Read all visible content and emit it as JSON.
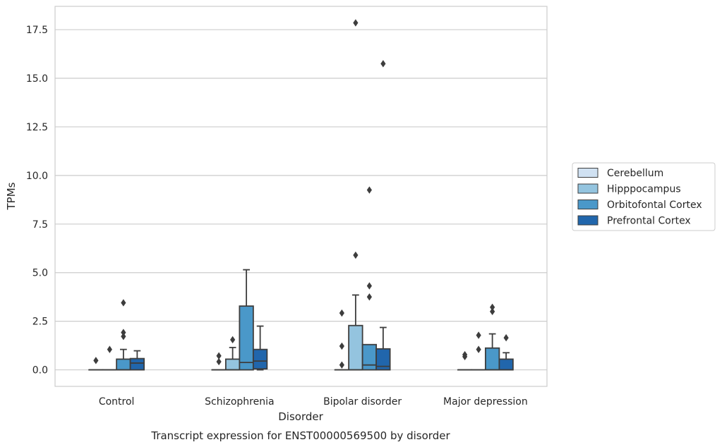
{
  "chart_data": {
    "type": "box",
    "caption": "Transcript expression for ENST00000569500 by disorder",
    "xlabel": "Disorder",
    "ylabel": "TPMs",
    "ylim": [
      -0.85,
      18.7
    ],
    "yticks": [
      "0.0",
      "2.5",
      "5.0",
      "7.5",
      "10.0",
      "12.5",
      "15.0",
      "17.5"
    ],
    "ytick_values": [
      0,
      2.5,
      5,
      7.5,
      10,
      12.5,
      15,
      17.5
    ],
    "grid": "horizontal",
    "legend_position": "right",
    "categories": [
      "Control",
      "Schizophrenia",
      "Bipolar disorder",
      "Major depression"
    ],
    "series": [
      {
        "name": "Cerebellum",
        "color": "#d0e1f2",
        "boxes": [
          {
            "q1": 0,
            "median": 0,
            "q3": 0,
            "wlo": 0,
            "whi": 0,
            "outliers": [
              0.48
            ]
          },
          {
            "q1": 0,
            "median": 0,
            "q3": 0,
            "wlo": 0,
            "whi": 0,
            "outliers": [
              0.42,
              0.72
            ]
          },
          {
            "q1": 0,
            "median": 0,
            "q3": 0,
            "wlo": 0,
            "whi": 0,
            "outliers": [
              0.25,
              1.22,
              2.92
            ]
          },
          {
            "q1": 0,
            "median": 0,
            "q3": 0,
            "wlo": 0,
            "whi": 0,
            "outliers": [
              0.68,
              0.78
            ]
          }
        ]
      },
      {
        "name": "Hipppocampus",
        "color": "#94c4df",
        "boxes": [
          {
            "q1": 0,
            "median": 0,
            "q3": 0,
            "wlo": 0,
            "whi": 0,
            "outliers": [
              1.05
            ]
          },
          {
            "q1": 0,
            "median": 0,
            "q3": 0.55,
            "wlo": 0,
            "whi": 1.15,
            "outliers": [
              1.55
            ]
          },
          {
            "q1": 0,
            "median": 0,
            "q3": 2.28,
            "wlo": 0,
            "whi": 3.85,
            "outliers": [
              5.9,
              17.85
            ]
          },
          {
            "q1": 0,
            "median": 0,
            "q3": 0,
            "wlo": 0,
            "whi": 0,
            "outliers": [
              1.05,
              1.78
            ]
          }
        ]
      },
      {
        "name": "Orbitofontal Cortex",
        "color": "#4a98c9",
        "boxes": [
          {
            "q1": 0,
            "median": 0,
            "q3": 0.55,
            "wlo": 0,
            "whi": 1.05,
            "outliers": [
              1.72,
              1.92,
              3.45
            ]
          },
          {
            "q1": 0,
            "median": 0.38,
            "q3": 3.28,
            "wlo": 0,
            "whi": 5.15,
            "outliers": []
          },
          {
            "q1": 0,
            "median": 0.25,
            "q3": 1.3,
            "wlo": 0,
            "whi": 1.3,
            "outliers": [
              3.75,
              4.32,
              9.25
            ]
          },
          {
            "q1": 0,
            "median": 0,
            "q3": 1.12,
            "wlo": 0,
            "whi": 1.85,
            "outliers": [
              3.0,
              3.22
            ]
          }
        ]
      },
      {
        "name": "Prefrontal Cortex",
        "color": "#2166ac",
        "boxes": [
          {
            "q1": 0,
            "median": 0.35,
            "q3": 0.58,
            "wlo": 0,
            "whi": 0.98,
            "outliers": []
          },
          {
            "q1": 0.05,
            "median": 0.45,
            "q3": 1.05,
            "wlo": 0,
            "whi": 2.25,
            "outliers": []
          },
          {
            "q1": 0,
            "median": 0.18,
            "q3": 1.08,
            "wlo": 0,
            "whi": 2.18,
            "outliers": [
              15.75
            ]
          },
          {
            "q1": 0,
            "median": 0,
            "q3": 0.55,
            "wlo": 0,
            "whi": 0.88,
            "outliers": [
              1.65
            ]
          }
        ]
      }
    ]
  }
}
